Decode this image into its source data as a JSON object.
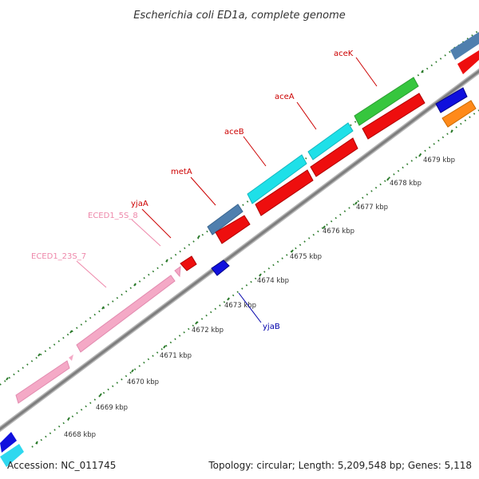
{
  "title": "Escherichia coli ED1a, complete genome",
  "footer": {
    "accession": "Accession: NC_011745",
    "summary": "Topology: circular; Length: 5,209,548 bp; Genes: 5,118"
  },
  "colors": {
    "backbone": "#8c8c8c",
    "tick": "#2a7a2a",
    "label_red": "#cc0000",
    "label_pink": "#ee88aa",
    "label_blue": "#0000aa"
  },
  "ticks": [
    {
      "kbp": 4668,
      "label": "4668 kbp"
    },
    {
      "kbp": 4669,
      "label": "4669 kbp"
    },
    {
      "kbp": 4670,
      "label": "4670 kbp"
    },
    {
      "kbp": 4671,
      "label": "4671 kbp"
    },
    {
      "kbp": 4672,
      "label": "4672 kbp"
    },
    {
      "kbp": 4673,
      "label": "4673 kbp"
    },
    {
      "kbp": 4674,
      "label": "4674 kbp"
    },
    {
      "kbp": 4675,
      "label": "4675 kbp"
    },
    {
      "kbp": 4676,
      "label": "4676 kbp"
    },
    {
      "kbp": 4677,
      "label": "4677 kbp"
    },
    {
      "kbp": 4678,
      "label": "4678 kbp"
    },
    {
      "kbp": 4679,
      "label": "4679 kbp"
    }
  ],
  "gene_labels": [
    {
      "id": "aceK",
      "text": "aceK",
      "color": "#cc0000"
    },
    {
      "id": "aceA",
      "text": "aceA",
      "color": "#cc0000"
    },
    {
      "id": "aceB",
      "text": "aceB",
      "color": "#cc0000"
    },
    {
      "id": "metA",
      "text": "metA",
      "color": "#cc0000"
    },
    {
      "id": "yjaA",
      "text": "yjaA",
      "color": "#cc0000"
    },
    {
      "id": "ECED1_5S_8",
      "text": "ECED1_5S_8",
      "color": "#ee88aa"
    },
    {
      "id": "ECED1_23S_7",
      "text": "ECED1_23S_7",
      "color": "#ee88aa"
    },
    {
      "id": "yjaB",
      "text": "yjaB",
      "color": "#0000aa"
    }
  ]
}
